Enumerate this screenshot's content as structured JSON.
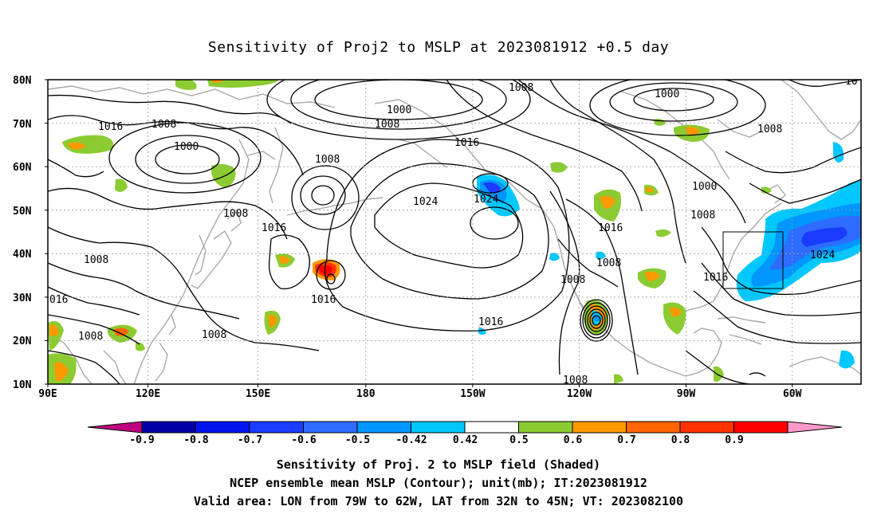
{
  "title": "Sensitivity of Proj2 to MSLP at 2023081912 +0.5 day",
  "lat_labels": [
    "80N",
    "70N",
    "60N",
    "50N",
    "40N",
    "30N",
    "20N",
    "10N"
  ],
  "lon_labels": [
    "90E",
    "120E",
    "150E",
    "180",
    "150W",
    "120W",
    "90W",
    "60W"
  ],
  "contour_labels": [
    {
      "text": "1000"
    },
    {
      "text": "1000"
    },
    {
      "text": "1000"
    },
    {
      "text": "1000"
    },
    {
      "text": "1008"
    },
    {
      "text": "1008"
    },
    {
      "text": "1008"
    },
    {
      "text": "1008"
    },
    {
      "text": "1008"
    },
    {
      "text": "1008"
    },
    {
      "text": "1008"
    },
    {
      "text": "1008"
    },
    {
      "text": "1008"
    },
    {
      "text": "1008"
    },
    {
      "text": "1008"
    },
    {
      "text": "1008"
    },
    {
      "text": "1008"
    },
    {
      "text": "1016"
    },
    {
      "text": "1016"
    },
    {
      "text": "1016"
    },
    {
      "text": "1016"
    },
    {
      "text": "1016"
    },
    {
      "text": "1016"
    },
    {
      "text": "016"
    },
    {
      "text": "1024"
    },
    {
      "text": "1024"
    },
    {
      "text": "1024"
    },
    {
      "text": "10"
    }
  ],
  "colorbar": {
    "labels": [
      "-0.9",
      "-0.8",
      "-0.7",
      "-0.6",
      "-0.5",
      "-0.42",
      "0.42",
      "0.5",
      "0.6",
      "0.7",
      "0.8",
      "0.9"
    ],
    "colors": [
      "#c00080",
      "#0000a8",
      "#0014f0",
      "#1a3cff",
      "#2e6cff",
      "#0096ff",
      "#00c8ff",
      "#ffffff",
      "#8ccc32",
      "#ff9900",
      "#ff6600",
      "#ff3300",
      "#ff0000",
      "#ff99cc"
    ]
  },
  "valid_box": {
    "lon": [
      -79,
      -62
    ],
    "lat": [
      32,
      45
    ]
  },
  "captions": [
    "Sensitivity of Proj. 2 to MSLP field (Shaded)",
    "NCEP ensemble mean MSLP (Contour); unit(mb); IT:2023081912",
    "Valid area: LON from 79W to 62W, LAT from 32N to 45N; VT: 2023082100"
  ]
}
